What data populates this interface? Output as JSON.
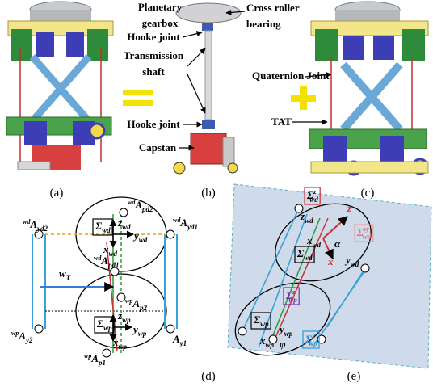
{
  "panel_labels": [
    "(a)",
    "(b)",
    "(c)",
    "(d)",
    "(e)"
  ],
  "panel_b_callouts": [
    {
      "lines": [
        "Planetary",
        "gearbox"
      ]
    },
    {
      "lines": [
        "Cross roller",
        "bearing"
      ]
    },
    {
      "lines": [
        "Hooke joint"
      ]
    },
    {
      "lines": [
        "Transmission",
        "shaft"
      ]
    },
    {
      "lines": [
        "Hooke joint"
      ]
    },
    {
      "lines": [
        "Capstan"
      ]
    }
  ],
  "panel_c_callouts": [
    "Quaternion Joint",
    "TAT"
  ],
  "diagram_d": {
    "labels": [
      {
        "pre": "wd",
        "base": "A",
        "sub": "pd2"
      },
      {
        "pre": "wd",
        "base": "A",
        "sub": "yd2"
      },
      {
        "pre": "wd",
        "base": "A",
        "sub": "yd1"
      },
      {
        "base": "Σ",
        "sub": "wd"
      },
      {
        "base": "z",
        "sub": "wd"
      },
      {
        "base": "y",
        "sub": "wd"
      },
      {
        "base": "x",
        "sub": "wd"
      },
      {
        "pre": "wd",
        "base": "A",
        "sub": "pd1"
      },
      {
        "base": "w",
        "sub": "T"
      },
      {
        "pre": "wp",
        "base": "A",
        "sub": "p2"
      },
      {
        "pre": "wp",
        "base": "A",
        "sub": "y2"
      },
      {
        "base": "Σ",
        "sub": "wp"
      },
      {
        "base": "z",
        "sub": "wp"
      },
      {
        "base": "y",
        "sub": "wp"
      },
      {
        "base": "x",
        "sub": "wp"
      },
      {
        "base": "A",
        "sub": "y1"
      },
      {
        "pre": "wp",
        "base": "A",
        "sub": "p1"
      }
    ]
  },
  "diagram_e": {
    "labels": [
      {
        "base": "Σ",
        "sup": "z",
        "sub": "wd"
      },
      {
        "base": "z",
        "sub": "wd"
      },
      {
        "base": "z"
      },
      {
        "base": "Σ",
        "sup": "zy",
        "sub": "wd"
      },
      {
        "base": "x",
        "sub": "wd"
      },
      {
        "base": "α"
      },
      {
        "base": "y",
        "sub": "wd"
      },
      {
        "base": "x"
      },
      {
        "base": "Σ",
        "sub": "wd"
      },
      {
        "base": "Σ",
        "sup": "z",
        "sub": "wp"
      },
      {
        "base": "Σ",
        "sub": "wp"
      },
      {
        "base": "y",
        "sub": "wp"
      },
      {
        "base": "x",
        "sub": "wp"
      },
      {
        "base": "φ"
      },
      {
        "base": "Σ",
        "sup": "x",
        "sub": "wp"
      }
    ]
  }
}
